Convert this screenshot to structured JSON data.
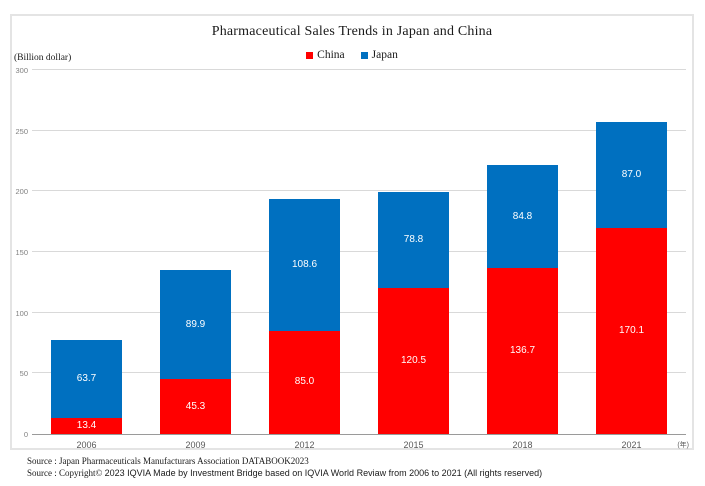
{
  "title": "Pharmaceutical Sales Trends in Japan and China",
  "legend": {
    "items": [
      {
        "label": "China",
        "color": "#ff0000"
      },
      {
        "label": "Japan",
        "color": "#0070c0"
      }
    ]
  },
  "y_axis": {
    "unit_label": "(Billion dollar)",
    "ticks": [
      "0",
      "50",
      "100",
      "150",
      "200",
      "250",
      "300"
    ]
  },
  "x_axis": {
    "unit_label": "(年)"
  },
  "footer": {
    "line1": "Source : Japan Pharmaceuticals Manufacturars Association DATABOOK2023",
    "line2_prefix": "Source : Copyright© ",
    "line2_rest": "2023 IQVIA Made by Investment Bridge based on IQVIA World Reviaw from 2006 to 2021 (All rights reserved)"
  },
  "chart_data": {
    "type": "bar",
    "stacked": true,
    "title": "Pharmaceutical Sales Trends in Japan and China",
    "ylabel": "(Billion dollar)",
    "xlabel": "(年)",
    "categories": [
      "2006",
      "2009",
      "2012",
      "2015",
      "2018",
      "2021"
    ],
    "series": [
      {
        "name": "China",
        "color": "#ff0000",
        "values": [
          13.4,
          45.3,
          85.0,
          120.5,
          136.7,
          170.1
        ]
      },
      {
        "name": "Japan",
        "color": "#0070c0",
        "values": [
          63.7,
          89.9,
          108.6,
          78.8,
          84.8,
          87.0
        ]
      }
    ],
    "totals": [
      77.1,
      135.2,
      193.6,
      199.3,
      221.5,
      257.1
    ],
    "ylim": [
      0,
      300
    ],
    "ytick_interval": 50,
    "grid": true,
    "legend_position": "top",
    "value_labels": "inside-white"
  }
}
